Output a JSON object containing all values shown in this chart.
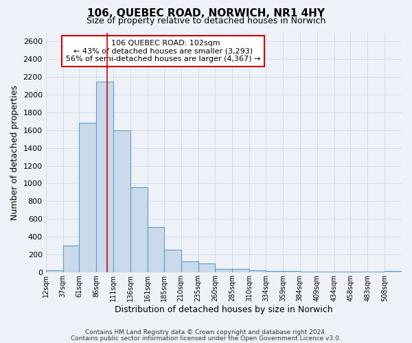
{
  "title": "106, QUEBEC ROAD, NORWICH, NR1 4HY",
  "subtitle": "Size of property relative to detached houses in Norwich",
  "xlabel": "Distribution of detached houses by size in Norwich",
  "ylabel": "Number of detached properties",
  "bar_labels": [
    "12sqm",
    "37sqm",
    "61sqm",
    "86sqm",
    "111sqm",
    "136sqm",
    "161sqm",
    "185sqm",
    "210sqm",
    "235sqm",
    "260sqm",
    "285sqm",
    "310sqm",
    "334sqm",
    "359sqm",
    "384sqm",
    "409sqm",
    "434sqm",
    "458sqm",
    "483sqm",
    "508sqm"
  ],
  "bar_heights": [
    20,
    300,
    1680,
    2150,
    1600,
    960,
    510,
    250,
    120,
    100,
    40,
    40,
    20,
    15,
    10,
    5,
    5,
    5,
    5,
    5,
    15
  ],
  "bar_color": "#c9daea",
  "bar_edge_color": "#5b9bd5",
  "bin_edges": [
    12,
    37,
    61,
    86,
    111,
    136,
    161,
    185,
    210,
    235,
    260,
    285,
    310,
    334,
    359,
    384,
    409,
    434,
    458,
    483,
    508,
    533
  ],
  "red_line_x": 102,
  "ylim": [
    0,
    2700
  ],
  "yticks": [
    0,
    200,
    400,
    600,
    800,
    1000,
    1200,
    1400,
    1600,
    1800,
    2000,
    2200,
    2400,
    2600
  ],
  "annotation_title": "106 QUEBEC ROAD: 102sqm",
  "annotation_line1": "← 43% of detached houses are smaller (3,293)",
  "annotation_line2": "56% of semi-detached houses are larger (4,367) →",
  "annotation_box_color": "#ffffff",
  "annotation_box_edge": "#cc0000",
  "grid_color": "#d4dce8",
  "background_color": "#eef2f8",
  "footer_line1": "Contains HM Land Registry data © Crown copyright and database right 2024.",
  "footer_line2": "Contains public sector information licensed under the Open Government Licence v3.0."
}
